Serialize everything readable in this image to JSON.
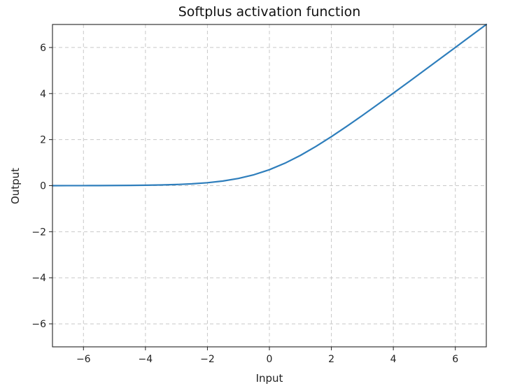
{
  "chart_data": {
    "type": "line",
    "title": "Softplus activation function",
    "xlabel": "Input",
    "ylabel": "Output",
    "xlim": [
      -7,
      7
    ],
    "ylim": [
      -7,
      7
    ],
    "x_ticks": [
      -6,
      -4,
      -2,
      0,
      2,
      4,
      6
    ],
    "y_ticks": [
      -6,
      -4,
      -2,
      0,
      2,
      4,
      6
    ],
    "x_tick_labels": [
      "−6",
      "−4",
      "−2",
      "0",
      "2",
      "4",
      "6"
    ],
    "y_tick_labels": [
      "−6",
      "−4",
      "−2",
      "0",
      "2",
      "4",
      "6"
    ],
    "grid": true,
    "legend": false,
    "series": [
      {
        "color": "#2e7ebc",
        "x": [
          -7,
          -6.5,
          -6,
          -5.5,
          -5,
          -4.5,
          -4,
          -3.5,
          -3,
          -2.5,
          -2,
          -1.5,
          -1,
          -0.5,
          0,
          0.5,
          1,
          1.5,
          2,
          2.5,
          3,
          3.5,
          4,
          4.5,
          5,
          5.5,
          6,
          6.5,
          7
        ],
        "y": [
          0.0009,
          0.0015,
          0.0025,
          0.0041,
          0.0067,
          0.011,
          0.0181,
          0.0298,
          0.0486,
          0.0789,
          0.1269,
          0.2014,
          0.3133,
          0.4741,
          0.6931,
          0.9741,
          1.3133,
          1.7014,
          2.1269,
          2.5789,
          3.0486,
          3.5298,
          4.0181,
          4.511,
          5.0067,
          5.5041,
          6.0025,
          6.5015,
          7.0009
        ]
      }
    ]
  }
}
